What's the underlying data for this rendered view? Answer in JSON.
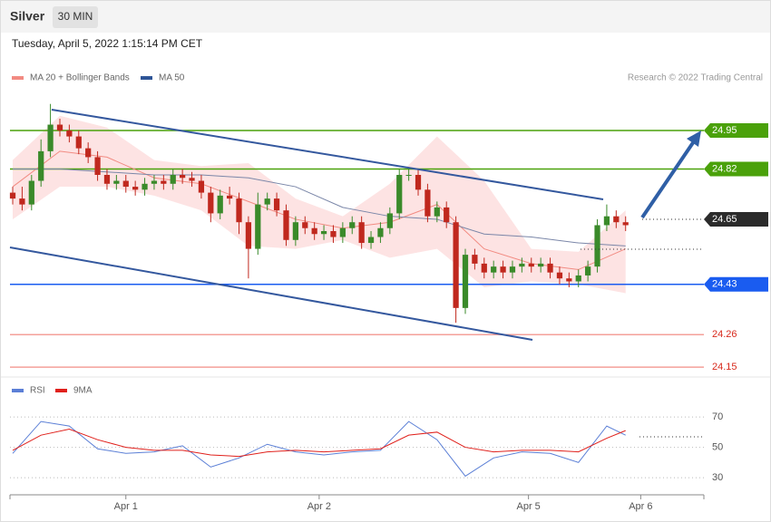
{
  "header": {
    "title": "Silver",
    "interval": "30 MIN",
    "timestamp": "Tuesday, April 5, 2022 1:15:14 PM CET"
  },
  "chart_data": [
    {
      "type": "candlestick",
      "credit": "Research © 2022 Trading Central",
      "xlim": [
        -0.29,
        73.3
      ],
      "ylim": [
        24.135,
        25.085
      ],
      "up_color": "#3a8a2a",
      "down_color": "#c0281e",
      "x": [
        0,
        1,
        2,
        3,
        4,
        5,
        6,
        7,
        8,
        9,
        10,
        11,
        12,
        13,
        14,
        15,
        16,
        17,
        18,
        19,
        20,
        21,
        22,
        23,
        24,
        25,
        26,
        27,
        28,
        29,
        30,
        31,
        32,
        33,
        34,
        35,
        36,
        37,
        38,
        39,
        40,
        41,
        42,
        43,
        44,
        45,
        46,
        47,
        48,
        49,
        50,
        51,
        52,
        53,
        54,
        55,
        56,
        57,
        58,
        59,
        60,
        61,
        62,
        63,
        64,
        65
      ],
      "open": [
        24.74,
        24.72,
        24.7,
        24.78,
        24.88,
        24.97,
        24.95,
        24.93,
        24.89,
        24.86,
        24.8,
        24.77,
        24.78,
        24.76,
        24.75,
        24.77,
        24.78,
        24.77,
        24.8,
        24.79,
        24.78,
        24.74,
        24.67,
        24.73,
        24.72,
        24.64,
        24.55,
        24.7,
        24.72,
        24.68,
        24.58,
        24.64,
        24.62,
        24.6,
        24.61,
        24.59,
        24.62,
        24.64,
        24.57,
        24.59,
        24.62,
        24.67,
        24.8,
        24.8,
        24.75,
        24.66,
        24.69,
        24.64,
        24.35,
        24.53,
        24.5,
        24.47,
        24.49,
        24.47,
        24.49,
        24.5,
        24.49,
        24.5,
        24.47,
        24.45,
        24.44,
        24.46,
        24.49,
        24.63,
        24.66,
        24.64
      ],
      "high": [
        24.76,
        24.76,
        24.8,
        24.92,
        25.04,
        24.99,
        24.97,
        24.95,
        24.91,
        24.88,
        24.82,
        24.8,
        24.8,
        24.78,
        24.79,
        24.8,
        24.8,
        24.82,
        24.82,
        24.81,
        24.8,
        24.76,
        24.75,
        24.76,
        24.74,
        24.66,
        24.74,
        24.74,
        24.74,
        24.7,
        24.66,
        24.66,
        24.64,
        24.63,
        24.63,
        24.64,
        24.66,
        24.66,
        24.61,
        24.64,
        24.69,
        24.82,
        24.82,
        24.82,
        24.77,
        24.71,
        24.71,
        24.66,
        24.55,
        24.55,
        24.52,
        24.51,
        24.51,
        24.51,
        24.52,
        24.52,
        24.52,
        24.52,
        24.49,
        24.47,
        24.48,
        24.51,
        24.65,
        24.7,
        24.68,
        24.66
      ],
      "low": [
        24.7,
        24.68,
        24.68,
        24.76,
        24.86,
        24.93,
        24.91,
        24.87,
        24.84,
        24.78,
        24.75,
        24.75,
        24.74,
        24.73,
        24.73,
        24.75,
        24.75,
        24.75,
        24.77,
        24.76,
        24.72,
        24.64,
        24.65,
        24.7,
        24.6,
        24.45,
        24.53,
        24.68,
        24.66,
        24.56,
        24.56,
        24.6,
        24.58,
        24.58,
        24.57,
        24.57,
        24.6,
        24.55,
        24.55,
        24.57,
        24.6,
        24.65,
        24.78,
        24.73,
        24.64,
        24.64,
        24.62,
        24.3,
        24.33,
        24.48,
        24.45,
        24.45,
        24.45,
        24.45,
        24.47,
        24.47,
        24.47,
        24.45,
        24.43,
        24.42,
        24.42,
        24.44,
        24.47,
        24.61,
        24.62,
        24.61
      ],
      "close": [
        24.72,
        24.7,
        24.78,
        24.88,
        24.97,
        24.95,
        24.93,
        24.89,
        24.86,
        24.8,
        24.77,
        24.78,
        24.76,
        24.75,
        24.77,
        24.78,
        24.77,
        24.8,
        24.79,
        24.78,
        24.74,
        24.67,
        24.73,
        24.72,
        24.64,
        24.55,
        24.7,
        24.72,
        24.68,
        24.58,
        24.64,
        24.62,
        24.6,
        24.61,
        24.59,
        24.62,
        24.64,
        24.57,
        24.59,
        24.62,
        24.67,
        24.8,
        24.8,
        24.75,
        24.66,
        24.69,
        24.64,
        24.35,
        24.53,
        24.5,
        24.47,
        24.49,
        24.47,
        24.49,
        24.5,
        24.49,
        24.5,
        24.47,
        24.45,
        24.44,
        24.46,
        24.49,
        24.63,
        24.66,
        24.64,
        24.63
      ],
      "series": [
        {
          "name": "MA 20 + Bollinger Bands",
          "color": "#f28b82",
          "band_color": "#fde3e3",
          "x": [
            0,
            5,
            10,
            15,
            20,
            25,
            30,
            35,
            40,
            45,
            50,
            55,
            60,
            65
          ],
          "values": [
            24.76,
            24.88,
            24.86,
            24.79,
            24.77,
            24.71,
            24.65,
            24.62,
            24.64,
            24.7,
            24.55,
            24.5,
            24.48,
            24.55
          ],
          "upper": [
            24.85,
            25.0,
            24.96,
            24.85,
            24.83,
            24.84,
            24.72,
            24.66,
            24.77,
            24.93,
            24.78,
            24.55,
            24.54,
            24.68
          ],
          "lower": [
            24.65,
            24.76,
            24.76,
            24.73,
            24.68,
            24.56,
            24.55,
            24.58,
            24.52,
            24.55,
            24.42,
            24.44,
            24.43,
            24.4
          ]
        },
        {
          "name": "MA 50",
          "color": "#7a86a8",
          "legend_color": "#2f5597",
          "x": [
            0,
            5,
            10,
            15,
            20,
            25,
            30,
            35,
            40,
            45,
            50,
            55,
            60,
            65
          ],
          "values": [
            24.82,
            24.82,
            24.81,
            24.8,
            24.8,
            24.79,
            24.76,
            24.69,
            24.66,
            24.65,
            24.6,
            24.59,
            24.57,
            24.56
          ]
        }
      ],
      "levels": [
        {
          "value": 24.95,
          "color": "#4aa10a",
          "tag": true
        },
        {
          "value": 24.82,
          "color": "#4aa10a",
          "tag": true
        },
        {
          "value": 24.65,
          "color": "#2b2b2b",
          "tag": true,
          "dotted": true
        },
        {
          "value": 24.43,
          "color": "#1a5cf0",
          "tag": true
        },
        {
          "value": 24.26,
          "color": "#f4a09a",
          "text_color": "#d8291c",
          "tag": false
        },
        {
          "value": 24.15,
          "color": "#f4a09a",
          "text_color": "#d8291c",
          "tag": false
        }
      ]
    },
    {
      "type": "line",
      "xlim": [
        -0.29,
        73.3
      ],
      "ylim": [
        19,
        79
      ],
      "yticks": [
        30,
        50,
        70
      ],
      "grid": true,
      "xticks": [
        {
          "value": 12,
          "label": "Apr 1"
        },
        {
          "value": 32.5,
          "label": "Apr 2"
        },
        {
          "value": 54.7,
          "label": "Apr 5"
        },
        {
          "value": 66.6,
          "label": "Apr 6"
        }
      ],
      "x": [
        0,
        3,
        6,
        9,
        12,
        15,
        18,
        21,
        24,
        27,
        30,
        33,
        36,
        39,
        42,
        45,
        48,
        51,
        54,
        57,
        60,
        63,
        65
      ],
      "series": [
        {
          "name": "RSI",
          "color": "#5b7fd6",
          "values": [
            46,
            67,
            64,
            49,
            46,
            47,
            51,
            37,
            43,
            52,
            47,
            45,
            47,
            48,
            67,
            55,
            31,
            43,
            47,
            46,
            40,
            64,
            58
          ]
        },
        {
          "name": "9MA",
          "color": "#e0201b",
          "values": [
            48,
            58,
            62,
            55,
            50,
            48,
            48,
            45,
            44,
            47,
            48,
            47,
            48,
            49,
            58,
            60,
            50,
            47,
            48,
            48,
            47,
            56,
            61
          ]
        }
      ]
    }
  ]
}
